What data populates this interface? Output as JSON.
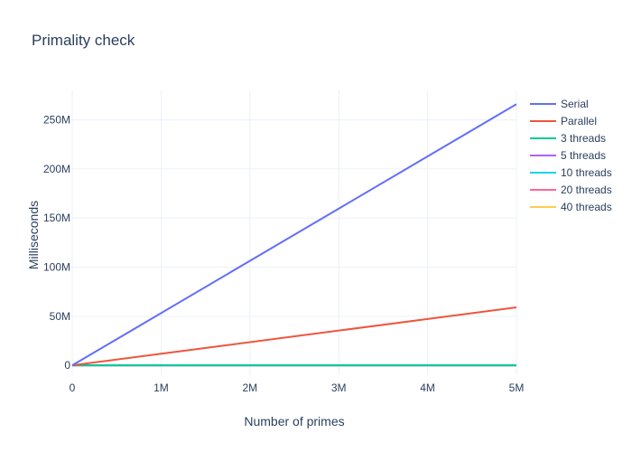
{
  "chart_data": {
    "type": "line",
    "title": "Primality check",
    "xlabel": "Number of primes",
    "ylabel": "Milliseconds",
    "xlim": [
      0,
      5000000
    ],
    "ylim": [
      -10000000,
      280000000
    ],
    "x_ticks": [
      {
        "value": 0,
        "label": "0"
      },
      {
        "value": 1000000,
        "label": "1M"
      },
      {
        "value": 2000000,
        "label": "2M"
      },
      {
        "value": 3000000,
        "label": "3M"
      },
      {
        "value": 4000000,
        "label": "4M"
      },
      {
        "value": 5000000,
        "label": "5M"
      }
    ],
    "y_ticks": [
      {
        "value": 0,
        "label": "0"
      },
      {
        "value": 50000000,
        "label": "50M"
      },
      {
        "value": 100000000,
        "label": "100M"
      },
      {
        "value": 150000000,
        "label": "150M"
      },
      {
        "value": 200000000,
        "label": "200M"
      },
      {
        "value": 250000000,
        "label": "250M"
      }
    ],
    "grid": true,
    "legend_position": "top-right",
    "series": [
      {
        "name": "Serial",
        "color": "#636efa",
        "x": [
          0,
          5000000
        ],
        "y": [
          0,
          266000000
        ]
      },
      {
        "name": "Parallel",
        "color": "#ef553b",
        "x": [
          0,
          5000000
        ],
        "y": [
          0,
          59000000
        ]
      },
      {
        "name": "3 threads",
        "color": "#00cc96",
        "x": [
          0,
          5000000
        ],
        "y": [
          0,
          0
        ]
      },
      {
        "name": "5 threads",
        "color": "#ab63fa",
        "x": [
          0,
          5000000
        ],
        "y": [
          0,
          0
        ]
      },
      {
        "name": "10 threads",
        "color": "#19d3f3",
        "x": [
          0,
          5000000
        ],
        "y": [
          0,
          0
        ]
      },
      {
        "name": "20 threads",
        "color": "#ff6692",
        "x": [
          0,
          5000000
        ],
        "y": [
          0,
          0
        ]
      },
      {
        "name": "40 threads",
        "color": "#fecb52",
        "x": [
          0,
          5000000
        ],
        "y": [
          0,
          0
        ]
      }
    ]
  }
}
